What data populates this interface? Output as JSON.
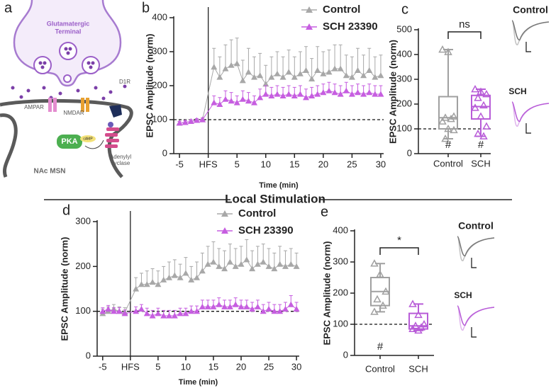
{
  "panel_labels": [
    "a",
    "b",
    "c",
    "d",
    "e"
  ],
  "section_title": "Local Stimulation",
  "diagram": {
    "terminal": [
      "Glutamatergic",
      "Terminal"
    ],
    "ampar": "AMPAR",
    "nmdar": "NMDAR",
    "d1r": "D1R",
    "pka": "PKA",
    "camp": "cAMP",
    "cyclase": [
      "Adenylyl",
      "cyclase"
    ],
    "cell": "NAc MSN"
  },
  "chart_data": [
    {
      "type": "line",
      "xlabel": "Time (min)",
      "ylabel": "EPSC Amplitude (norm)",
      "legend": "upper right",
      "x": [
        -5,
        -4,
        -3,
        -2,
        -1,
        1,
        2,
        3,
        4,
        5,
        6,
        7,
        8,
        9,
        10,
        11,
        12,
        13,
        14,
        15,
        16,
        17,
        18,
        19,
        20,
        21,
        22,
        23,
        24,
        25,
        26,
        27,
        28,
        29,
        30
      ],
      "series": [
        {
          "name": "Control",
          "color": "#a8a8a8",
          "values": [
            90,
            92,
            95,
            98,
            100,
            255,
            225,
            250,
            260,
            265,
            215,
            240,
            225,
            230,
            205,
            225,
            235,
            225,
            240,
            225,
            235,
            245,
            220,
            245,
            235,
            240,
            250,
            250,
            230,
            225,
            245,
            230,
            245,
            225,
            230
          ],
          "errors": [
            5,
            5,
            5,
            5,
            5,
            55,
            60,
            70,
            75,
            75,
            60,
            70,
            60,
            65,
            55,
            60,
            65,
            60,
            65,
            60,
            65,
            70,
            60,
            70,
            65,
            65,
            70,
            70,
            60,
            60,
            65,
            60,
            65,
            60,
            60
          ]
        },
        {
          "name": "SCH 23390",
          "color": "#c65ee0",
          "values": [
            90,
            92,
            95,
            98,
            100,
            150,
            145,
            160,
            155,
            150,
            160,
            155,
            150,
            165,
            175,
            170,
            175,
            170,
            175,
            170,
            175,
            165,
            170,
            175,
            180,
            185,
            180,
            175,
            185,
            175,
            180,
            175,
            180,
            175,
            175
          ],
          "errors": [
            5,
            5,
            5,
            5,
            5,
            20,
            20,
            25,
            25,
            20,
            25,
            25,
            20,
            25,
            25,
            25,
            25,
            25,
            25,
            25,
            25,
            25,
            25,
            25,
            25,
            25,
            25,
            25,
            25,
            25,
            25,
            25,
            25,
            25,
            25
          ]
        }
      ],
      "xlim": [
        -6,
        30.5
      ],
      "ylim": [
        0,
        400
      ],
      "yticks": [
        0,
        100,
        200,
        300,
        400
      ],
      "xticks": [
        -5,
        {
          "value": 0,
          "label": "HFS"
        },
        5,
        10,
        15,
        20,
        25,
        30
      ],
      "reference_line": 100,
      "event_line": 0
    },
    {
      "type": "box",
      "ylabel": "EPSC Amplitude (norm)",
      "categories": [
        "Control",
        "SCH"
      ],
      "boxes": [
        {
          "color": "#a0a0a0",
          "whisker_low": 60,
          "q1": 100,
          "median": 145,
          "q3": 230,
          "whisker_high": 420,
          "points": [
            420,
            410,
            150,
            145,
            140,
            130,
            100,
            95,
            60
          ]
        },
        {
          "color": "#b85cd8",
          "whisker_low": 70,
          "q1": 140,
          "median": 190,
          "q3": 235,
          "whisker_high": 260,
          "points": [
            260,
            250,
            240,
            225,
            195,
            185,
            150,
            110,
            80,
            70
          ]
        }
      ],
      "box_labels": [
        "#",
        "#"
      ],
      "significance": "ns",
      "ylim": [
        0,
        500
      ],
      "yticks": [
        0,
        100,
        200,
        300,
        400,
        500
      ],
      "reference_line": 100,
      "trace_labels": [
        "Control",
        "SCH"
      ]
    },
    {
      "type": "line",
      "xlabel": "Time (min)",
      "ylabel": "EPSC Amplitude (norm)",
      "legend": "upper right",
      "x": [
        -5,
        -4,
        -3,
        -2,
        -1,
        1,
        2,
        3,
        4,
        5,
        6,
        7,
        8,
        9,
        10,
        11,
        12,
        13,
        14,
        15,
        16,
        17,
        18,
        19,
        20,
        21,
        22,
        23,
        24,
        25,
        26,
        27,
        28,
        29,
        30
      ],
      "series": [
        {
          "name": "Control",
          "color": "#a8a8a8",
          "values": [
            95,
            100,
            105,
            100,
            98,
            150,
            160,
            160,
            165,
            160,
            170,
            175,
            180,
            175,
            185,
            170,
            175,
            190,
            205,
            210,
            200,
            195,
            210,
            200,
            205,
            215,
            195,
            205,
            210,
            200,
            195,
            205,
            200,
            205,
            200
          ],
          "errors": [
            10,
            10,
            10,
            10,
            10,
            25,
            25,
            30,
            30,
            30,
            30,
            35,
            35,
            30,
            35,
            30,
            35,
            40,
            40,
            45,
            40,
            40,
            40,
            40,
            40,
            45,
            40,
            40,
            40,
            40,
            35,
            40,
            35,
            35,
            30
          ]
        },
        {
          "name": "SCH 23390",
          "color": "#c65ee0",
          "values": [
            100,
            105,
            100,
            100,
            95,
            100,
            105,
            95,
            90,
            95,
            90,
            90,
            90,
            95,
            95,
            100,
            100,
            110,
            110,
            110,
            115,
            110,
            110,
            115,
            110,
            110,
            105,
            110,
            100,
            105,
            100,
            100,
            105,
            115,
            105
          ],
          "errors": [
            8,
            8,
            8,
            8,
            8,
            10,
            10,
            12,
            12,
            12,
            12,
            12,
            12,
            12,
            12,
            12,
            12,
            15,
            15,
            15,
            15,
            15,
            15,
            15,
            15,
            15,
            15,
            15,
            15,
            15,
            15,
            15,
            15,
            20,
            15
          ]
        }
      ],
      "xlim": [
        -6,
        30.5
      ],
      "ylim": [
        0,
        300
      ],
      "yticks": [
        0,
        100,
        200,
        300
      ],
      "xticks": [
        -5,
        {
          "value": 0,
          "label": "HFS"
        },
        5,
        10,
        15,
        20,
        25,
        30
      ],
      "reference_line": 100,
      "event_line": 0
    },
    {
      "type": "box",
      "ylabel": "EPSC Amplitude (norm)",
      "categories": [
        "Control",
        "SCH"
      ],
      "boxes": [
        {
          "color": "#a0a0a0",
          "whisker_low": 140,
          "q1": 160,
          "median": 205,
          "q3": 250,
          "whisker_high": 295,
          "points": [
            295,
            260,
            205,
            180,
            160,
            140
          ]
        },
        {
          "color": "#b85cd8",
          "whisker_low": 80,
          "q1": 85,
          "median": 95,
          "q3": 135,
          "whisker_high": 165,
          "points": [
            165,
            130,
            100,
            95,
            90,
            85,
            80
          ]
        }
      ],
      "box_labels": [
        "#",
        null
      ],
      "significance": "*",
      "ylim": [
        0,
        400
      ],
      "yticks": [
        0,
        100,
        200,
        300,
        400
      ],
      "reference_line": 100,
      "trace_labels": [
        "Control",
        "SCH"
      ]
    }
  ]
}
